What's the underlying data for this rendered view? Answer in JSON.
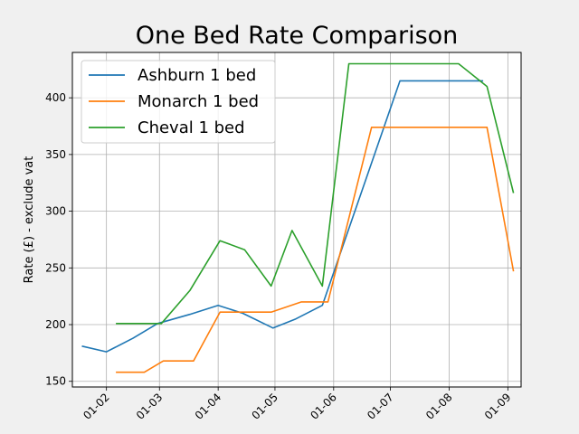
{
  "chart_data": {
    "type": "line",
    "title": "One Bed Rate Comparison",
    "xlabel": "",
    "ylabel": "Rate (£) - exclude vat",
    "x_ticks": [
      "01-02",
      "01-03",
      "01-04",
      "01-05",
      "01-06",
      "01-07",
      "01-08",
      "01-09"
    ],
    "x_tick_days": [
      31,
      59,
      90,
      120,
      151,
      181,
      212,
      243
    ],
    "xlim_days": [
      13,
      250
    ],
    "y_ticks": [
      150,
      200,
      250,
      300,
      350,
      400
    ],
    "ylim": [
      145,
      440
    ],
    "grid": true,
    "legend_position": "top-left",
    "series": [
      {
        "name": "Ashburn 1 bed",
        "color": "#1f77b4",
        "x_days": [
          18,
          31,
          45,
          58,
          75,
          90,
          103,
          119,
          131,
          145,
          186,
          230
        ],
        "values": [
          181,
          176,
          188,
          201,
          209,
          217,
          210,
          197,
          205,
          217,
          415,
          415
        ]
      },
      {
        "name": "Monarch 1 bed",
        "color": "#ff7f0e",
        "x_days": [
          36,
          51,
          61,
          77,
          91,
          118,
          134,
          148,
          171,
          232,
          246
        ],
        "values": [
          158,
          158,
          168,
          168,
          211,
          211,
          220,
          220,
          374,
          374,
          247
        ]
      },
      {
        "name": "Cheval 1 bed",
        "color": "#2ca02c",
        "x_days": [
          36,
          60,
          75,
          91,
          104,
          118,
          129,
          145,
          159,
          217,
          232,
          246
        ],
        "values": [
          201,
          201,
          230,
          274,
          266,
          234,
          283,
          234,
          430,
          430,
          410,
          316
        ]
      }
    ]
  }
}
